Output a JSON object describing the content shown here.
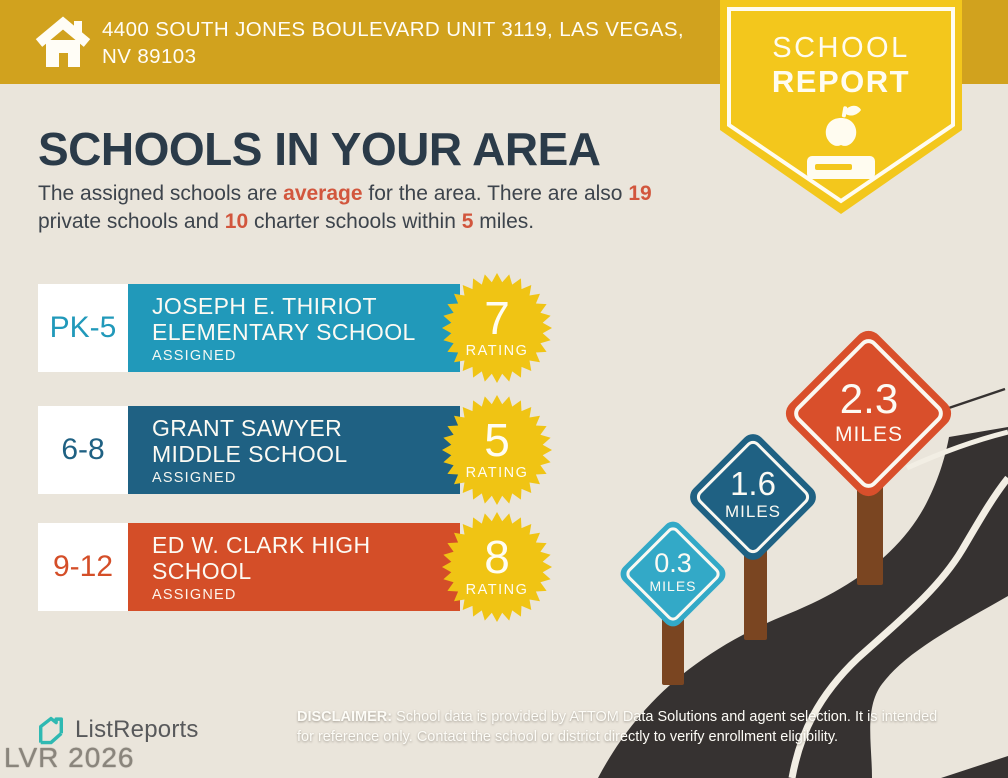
{
  "header": {
    "address_line1": "4400 SOUTH JONES BOULEVARD UNIT 3119, LAS VEGAS,",
    "address_line2": "NV 89103"
  },
  "badge": {
    "line1": "SCHOOL",
    "line2": "REPORT"
  },
  "title": "SCHOOLS IN YOUR AREA",
  "intro": {
    "p0": "The assigned schools are ",
    "p1": "average",
    "p2": " for the area. There are also ",
    "p3": "19",
    "p4": "private schools and ",
    "p5": "10",
    "p6": " charter schools within ",
    "p7": "5",
    "p8": " miles."
  },
  "schools": [
    {
      "grade": "PK-5",
      "name": "JOSEPH E. THIRIOT ELEMENTARY SCHOOL",
      "status": "ASSIGNED",
      "rating": "7",
      "rating_label": "RATING",
      "color": "#2199BA"
    },
    {
      "grade": "6-8",
      "name": "GRANT SAWYER MIDDLE SCHOOL",
      "status": "ASSIGNED",
      "rating": "5",
      "rating_label": "RATING",
      "color": "#1F6183"
    },
    {
      "grade": "9-12",
      "name": "ED W. CLARK HIGH SCHOOL",
      "status": "ASSIGNED",
      "rating": "8",
      "rating_label": "RATING",
      "color": "#D44E28"
    }
  ],
  "signs": [
    {
      "distance": "0.3",
      "unit": "MILES",
      "color": "#33A9C7"
    },
    {
      "distance": "1.6",
      "unit": "MILES",
      "color": "#1F6183"
    },
    {
      "distance": "2.3",
      "unit": "MILES",
      "color": "#D94F2B"
    }
  ],
  "footer": {
    "brand": "ListReports",
    "disclaimer_label": "DISCLAIMER:",
    "disclaimer_line1": " School data is provided by ATTOM Data Solutions and agent selection. It is intended",
    "disclaimer_line2": "for reference only. Contact the school or district directly to verify enrollment eligibility.",
    "watermark": "LVR 2026"
  },
  "colors": {
    "background": "#EAE5DB",
    "header_gold": "#D1A21E",
    "badge_yellow": "#F3C71C",
    "burst_yellow": "#F0C414",
    "accent": "#D2563D",
    "title_navy": "#2B3B49",
    "road": "#363231",
    "post_brown": "#7A4521",
    "logo_teal": "#2FB9B2"
  }
}
